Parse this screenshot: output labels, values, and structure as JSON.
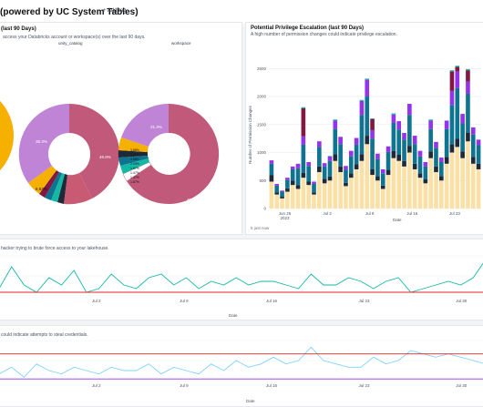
{
  "header": {
    "title": "(powered by UC System Tables)",
    "add_tag_label": "+ Add tag"
  },
  "pie_panel": {
    "title": "(last 90 Days)",
    "subtitle": "access your Databricks account or workspace(s) over the last 90 days.",
    "charts": [
      {
        "title": "unity_catalog",
        "labels": [
          "38.3%",
          "6.53%",
          "46.8%"
        ]
      },
      {
        "title": "workspace",
        "labels": [
          "31.3%",
          "3.88%",
          "3.41%",
          "3.58%",
          "2.03%",
          "1.67%",
          "1.47%",
          "1.47%",
          "1.87%",
          "49.6%"
        ]
      }
    ]
  },
  "priv_panel": {
    "title": "Potential Privilege Escalation (last 90 Days)",
    "subtitle": "A high number of permission changes could indicate privilege escalation.",
    "footer": "5 just now",
    "chart_data": {
      "type": "bar",
      "ylabel": "Number of Permission Changes",
      "xlabel": "Date",
      "yticks": [
        "0",
        "500",
        "1000",
        "1500",
        "2000",
        "2500"
      ],
      "ylim": [
        0,
        2700
      ],
      "xticks": [
        "Jun 25\n2023",
        "Jul 2",
        "Jul 9",
        "Jul 16",
        "Jul 23"
      ],
      "series_colors": [
        "#fbe0a6",
        "#1f2937",
        "#0e7490",
        "#9333ea",
        "#831843",
        "#14b8a6"
      ],
      "stacks": [
        [
          480,
          120,
          200,
          60,
          0,
          0
        ],
        [
          250,
          40,
          120,
          30,
          0,
          0
        ],
        [
          180,
          30,
          90,
          20,
          0,
          0
        ],
        [
          300,
          60,
          150,
          40,
          0,
          0
        ],
        [
          420,
          80,
          200,
          50,
          0,
          0
        ],
        [
          350,
          70,
          300,
          80,
          0,
          0
        ],
        [
          550,
          90,
          500,
          150,
          500,
          20
        ],
        [
          420,
          60,
          280,
          70,
          0,
          0
        ],
        [
          250,
          40,
          150,
          40,
          0,
          0
        ],
        [
          650,
          100,
          350,
          100,
          0,
          0
        ],
        [
          450,
          80,
          220,
          60,
          0,
          0
        ],
        [
          500,
          70,
          280,
          80,
          0,
          10
        ],
        [
          850,
          120,
          450,
          150,
          0,
          20
        ],
        [
          650,
          100,
          400,
          130,
          0,
          0
        ],
        [
          400,
          60,
          230,
          70,
          0,
          0
        ],
        [
          550,
          80,
          300,
          100,
          0,
          0
        ],
        [
          700,
          90,
          350,
          120,
          0,
          0
        ],
        [
          850,
          120,
          700,
          250,
          0,
          20
        ],
        [
          1150,
          150,
          700,
          300,
          0,
          20
        ],
        [
          600,
          100,
          550,
          150,
          200,
          10
        ],
        [
          500,
          80,
          300,
          100,
          0,
          0
        ],
        [
          350,
          60,
          220,
          70,
          0,
          0
        ],
        [
          600,
          90,
          320,
          100,
          0,
          0
        ],
        [
          900,
          130,
          500,
          150,
          0,
          20
        ],
        [
          850,
          110,
          450,
          150,
          0,
          0
        ],
        [
          750,
          100,
          380,
          120,
          0,
          0
        ],
        [
          1000,
          120,
          550,
          200,
          0,
          0
        ],
        [
          700,
          100,
          350,
          150,
          0,
          0
        ],
        [
          550,
          80,
          300,
          100,
          0,
          0
        ],
        [
          450,
          70,
          230,
          80,
          0,
          0
        ],
        [
          900,
          120,
          400,
          150,
          0,
          20
        ],
        [
          650,
          100,
          330,
          110,
          0,
          0
        ],
        [
          500,
          80,
          250,
          80,
          0,
          0
        ],
        [
          800,
          120,
          500,
          150,
          0,
          0
        ],
        [
          1000,
          150,
          700,
          250,
          350,
          20
        ],
        [
          1100,
          150,
          900,
          300,
          80,
          20
        ],
        [
          900,
          120,
          500,
          170,
          0,
          0
        ],
        [
          1200,
          150,
          700,
          220,
          200,
          20
        ],
        [
          800,
          120,
          400,
          130,
          0,
          0
        ],
        [
          700,
          100,
          330,
          100,
          0,
          0
        ]
      ]
    }
  },
  "middle_panel": {
    "subtitle": "hacker trying to brute force access to your lakehouse.",
    "chart_data": {
      "type": "line",
      "xlabel": "Date",
      "xticks": [
        "Jul 2",
        "Jul 9",
        "Jul 16",
        "Jul 23",
        "Jul 30"
      ],
      "series": [
        {
          "color": "#14b8a6",
          "values": [
            2,
            8,
            3,
            1,
            5,
            3,
            7,
            1,
            2,
            6,
            3,
            2,
            5,
            6,
            3,
            5,
            2,
            4,
            3,
            5,
            3,
            4,
            4,
            3,
            2,
            6,
            3,
            3,
            5,
            4,
            2,
            4,
            5,
            1,
            2,
            3,
            4,
            3,
            5,
            10
          ]
        },
        {
          "color": "#dc2626",
          "values": [
            1,
            1,
            1,
            1,
            1,
            1,
            1,
            1,
            1,
            1,
            1,
            1,
            1,
            1,
            1,
            1,
            1,
            1,
            1,
            1,
            1,
            1,
            1,
            1,
            1,
            1,
            1,
            1,
            1,
            1,
            1,
            1,
            1,
            1,
            1,
            1,
            1,
            1,
            1,
            1
          ]
        }
      ],
      "ylim": [
        0,
        11
      ]
    }
  },
  "bottom_panel": {
    "subtitle": "could indicate attempts to steal credentials.",
    "chart_data": {
      "type": "line",
      "xlabel": "Date",
      "xticks": [
        "Jul 2",
        "Jul 9",
        "Jul 16",
        "Jul 23",
        "Jul 30"
      ],
      "series": [
        {
          "color": "#7dd3fc",
          "values": [
            2,
            4,
            1,
            5,
            3,
            2,
            4,
            3,
            2,
            4,
            3,
            3,
            5,
            2,
            4,
            3,
            2,
            5,
            3,
            6,
            4,
            5,
            7,
            5,
            6,
            10,
            6,
            5,
            4,
            4,
            7,
            5,
            6,
            9,
            8,
            7,
            8,
            7,
            6,
            5
          ]
        },
        {
          "color": "#dc2626",
          "values": [
            8,
            8,
            8,
            8,
            8,
            8,
            8,
            8,
            8,
            8,
            8,
            8,
            8,
            8,
            8,
            8,
            8,
            8,
            8,
            8,
            8,
            8,
            8,
            8,
            8,
            8,
            8,
            8,
            8,
            8,
            8,
            8,
            8,
            8,
            8,
            8,
            8,
            8,
            8,
            8
          ]
        },
        {
          "color": "#9333ea",
          "values": [
            0.5,
            0.5,
            0.5,
            0.5,
            0.5,
            0.5,
            0.5,
            0.5,
            0.5,
            0.5,
            0.5,
            0.5,
            0.5,
            0.5,
            0.5,
            0.5,
            0.5,
            0.5,
            0.5,
            0.5,
            0.5,
            0.5,
            0.5,
            0.5,
            0.5,
            0.5,
            0.5,
            0.5,
            0.5,
            0.5,
            0.5,
            0.5,
            0.5,
            0.5,
            0.5,
            0.5,
            0.5,
            0.5,
            0.5,
            0.5
          ]
        }
      ],
      "ylim": [
        0,
        12
      ]
    }
  }
}
